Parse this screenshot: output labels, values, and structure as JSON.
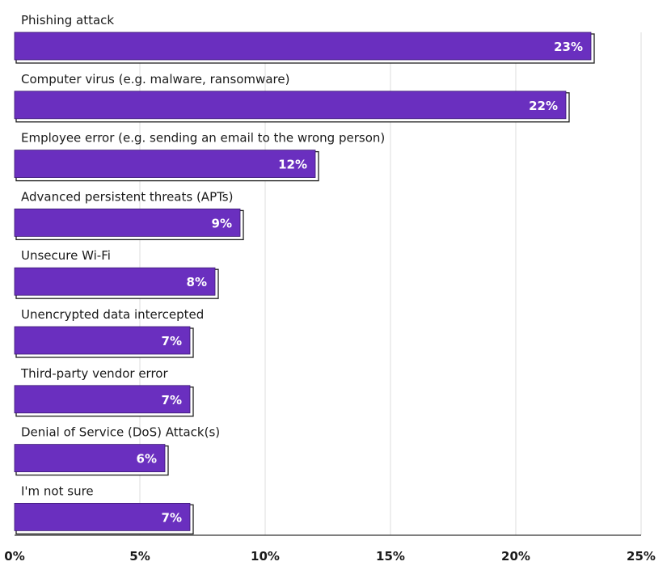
{
  "chart_data": {
    "type": "bar",
    "orientation": "horizontal",
    "categories": [
      "Phishing attack",
      "Computer virus (e.g. malware, ransomware)",
      "Employee error (e.g. sending an email to the wrong person)",
      "Advanced persistent threats (APTs)",
      "Unsecure Wi-Fi",
      "Unencrypted data intercepted",
      "Third-party vendor error",
      "Denial of Service (DoS) Attack(s)",
      "I'm not sure"
    ],
    "values": [
      23,
      22,
      12,
      9,
      8,
      7,
      7,
      6,
      7
    ],
    "value_labels": [
      "23%",
      "22%",
      "12%",
      "9%",
      "8%",
      "7%",
      "7%",
      "6%",
      "7%"
    ],
    "xlim": [
      0,
      25
    ],
    "x_ticks": [
      0,
      5,
      10,
      15,
      20,
      25
    ],
    "x_tick_labels": [
      "0%",
      "5%",
      "10%",
      "15%",
      "20%",
      "25%"
    ],
    "grid": true,
    "title": "",
    "xlabel": "",
    "ylabel": "",
    "colors": {
      "bar": "#6a2fbf",
      "bar_outline": "#1f1f1f",
      "grid": "#dddddd",
      "axis": "#333333",
      "text": "#1a1a1a",
      "value_text": "#ffffff"
    }
  }
}
